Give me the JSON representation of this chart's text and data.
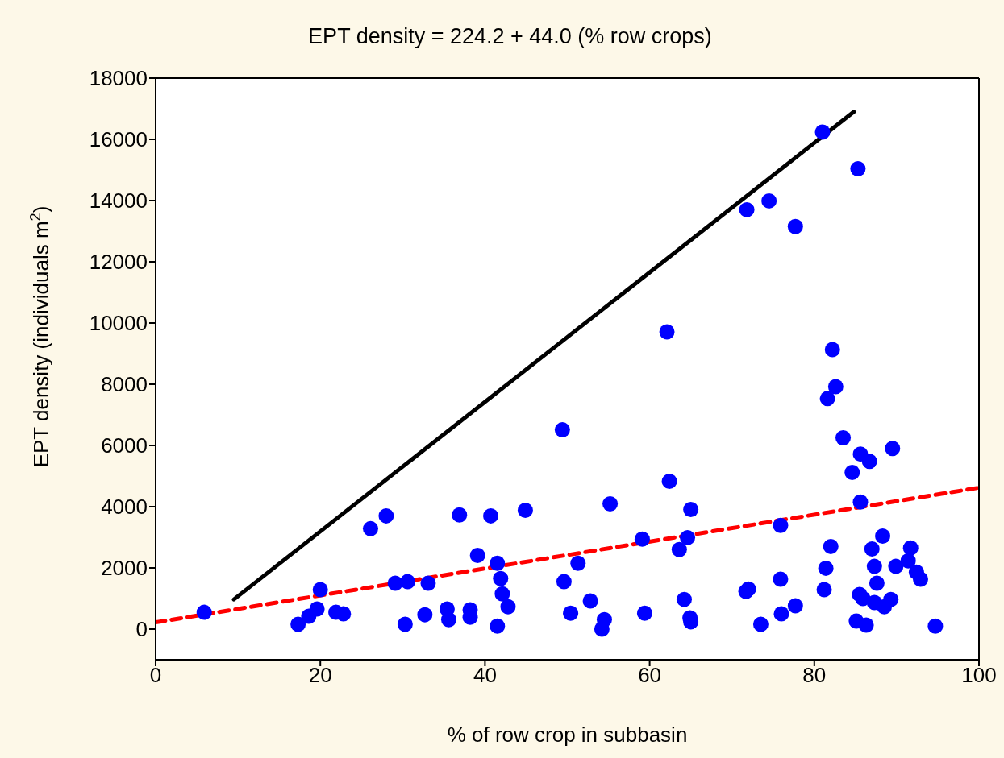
{
  "chart_data": {
    "type": "scatter",
    "title": "EPT density = 224.2 + 44.0 (% row crops)",
    "xlabel": "% of row crop in subbasin",
    "ylabel": "EPT density (individuals m$^{2}$)",
    "xlim": [
      0,
      100
    ],
    "xticks": [
      0,
      20,
      40,
      60,
      80,
      100
    ],
    "ylim": [
      -1000,
      18000
    ],
    "yticks": [
      0,
      2000,
      4000,
      6000,
      8000,
      10000,
      12000,
      14000,
      16000,
      18000
    ],
    "grid": false,
    "legend": false,
    "series": [
      {
        "color": "#0000ff",
        "marker": "circle",
        "x": [
          5.9,
          17.3,
          18.6,
          19.6,
          20.0,
          21.9,
          22.8,
          26.1,
          28.0,
          29.1,
          30.3,
          30.6,
          32.7,
          33.1,
          35.4,
          35.6,
          36.9,
          38.2,
          38.2,
          39.1,
          40.7,
          41.5,
          41.5,
          41.9,
          42.1,
          42.8,
          44.9,
          49.4,
          49.6,
          50.4,
          51.3,
          52.8,
          54.5,
          54.2,
          55.2,
          59.1,
          59.4,
          62.1,
          62.4,
          63.6,
          64.2,
          64.6,
          64.9,
          65.0,
          65.0,
          71.7,
          72.0,
          71.8,
          74.5,
          73.5,
          75.9,
          75.9,
          76.0,
          77.7,
          77.7,
          81.0,
          81.2,
          81.4,
          81.6,
          82.0,
          82.2,
          82.6,
          83.5,
          84.6,
          85.3,
          85.1,
          85.5,
          85.6,
          85.6,
          85.9,
          86.3,
          86.7,
          87.0,
          87.3,
          87.3,
          87.6,
          88.3,
          88.5,
          89.3,
          89.5,
          89.9,
          91.4,
          91.7,
          92.4,
          92.9,
          94.7
        ],
        "values": [
          550,
          160,
          420,
          660,
          1290,
          550,
          500,
          3280,
          3700,
          1500,
          160,
          1550,
          470,
          1500,
          660,
          310,
          3730,
          630,
          390,
          2410,
          3700,
          2150,
          100,
          1650,
          1150,
          730,
          3880,
          6510,
          1550,
          520,
          2150,
          920,
          310,
          0,
          4090,
          2940,
          520,
          9710,
          4830,
          2600,
          970,
          2990,
          370,
          3910,
          240,
          1230,
          1310,
          13700,
          13990,
          160,
          1630,
          3390,
          500,
          13150,
          760,
          16240,
          1290,
          1990,
          7530,
          2700,
          9130,
          7920,
          6250,
          5120,
          15040,
          260,
          1130,
          5720,
          4150,
          1000,
          130,
          5480,
          2620,
          2050,
          870,
          1500,
          3040,
          730,
          970,
          5900,
          2050,
          2230,
          2650,
          1860,
          1630,
          100
        ]
      },
      {
        "type": "line",
        "color": "#000000",
        "marker": "none",
        "line_style": "solid",
        "x": [
          9.5,
          84.8
        ],
        "values": [
          970,
          16900
        ]
      },
      {
        "type": "line",
        "color": "#ff0000",
        "marker": "none",
        "line_style": "dashed",
        "x": [
          0,
          100
        ],
        "values": [
          220,
          4620
        ]
      }
    ]
  }
}
